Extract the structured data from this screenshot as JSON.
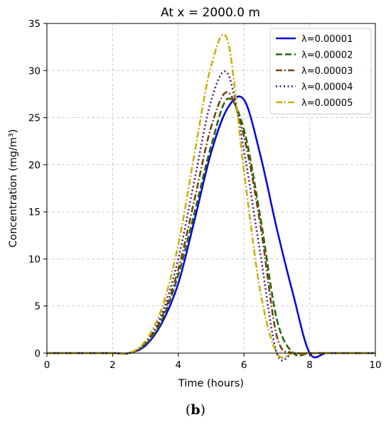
{
  "caption": {
    "open": "(",
    "letter": "b",
    "close": ")"
  },
  "chart_data": {
    "type": "line",
    "title": "At x = 2000.0 m",
    "xlabel": "Time (hours)",
    "ylabel": "Concentration (mg/m³)",
    "xlim": [
      0,
      10
    ],
    "ylim": [
      0,
      35
    ],
    "xticks": [
      0,
      2,
      4,
      6,
      8,
      10
    ],
    "yticks": [
      0,
      5,
      10,
      15,
      20,
      25,
      30,
      35
    ],
    "grid": true,
    "legend_position": "top-right",
    "x": [
      0,
      1,
      2,
      2.5,
      3,
      3.5,
      4,
      4.5,
      5,
      5.5,
      6,
      6.5,
      7,
      7.5,
      8,
      8.5,
      9,
      10
    ],
    "series": [
      {
        "name": "λ=0.00001",
        "color": "#0a0ad8",
        "dash": "solid",
        "values": [
          0,
          0,
          0,
          0,
          0.8,
          3.2,
          7.4,
          14.2,
          21.3,
          26.0,
          26.9,
          21.0,
          13.2,
          6.2,
          0,
          0,
          0,
          0
        ]
      },
      {
        "name": "λ=0.00002",
        "color": "#236b0e",
        "dash": "dashed",
        "values": [
          0,
          0,
          0,
          0,
          0.9,
          3.5,
          8.3,
          15.0,
          22.0,
          27.0,
          23.7,
          14.4,
          3.6,
          0,
          0,
          0,
          0,
          0
        ]
      },
      {
        "name": "λ=0.00003",
        "color": "#7a4010",
        "dash": "dashdot",
        "values": [
          0,
          0,
          0,
          0,
          1.1,
          3.8,
          8.9,
          16.4,
          24.0,
          27.7,
          23.0,
          13.6,
          1.8,
          0,
          0,
          0,
          0,
          0
        ]
      },
      {
        "name": "λ=0.00004",
        "color": "#3a1a8a",
        "dash": "dotted",
        "values": [
          0,
          0,
          0,
          0,
          1.1,
          4.2,
          10.0,
          18.5,
          26.8,
          29.7,
          21.5,
          10.5,
          0,
          0,
          0,
          0,
          0,
          0
        ]
      },
      {
        "name": "λ=0.00005",
        "color": "#c9b20a",
        "dash": "dashdot",
        "values": [
          0,
          0,
          0,
          0,
          1.3,
          4.8,
          11.5,
          21.3,
          30.5,
          33.2,
          19.3,
          6.5,
          0,
          0,
          0,
          0,
          0,
          0
        ]
      }
    ]
  }
}
